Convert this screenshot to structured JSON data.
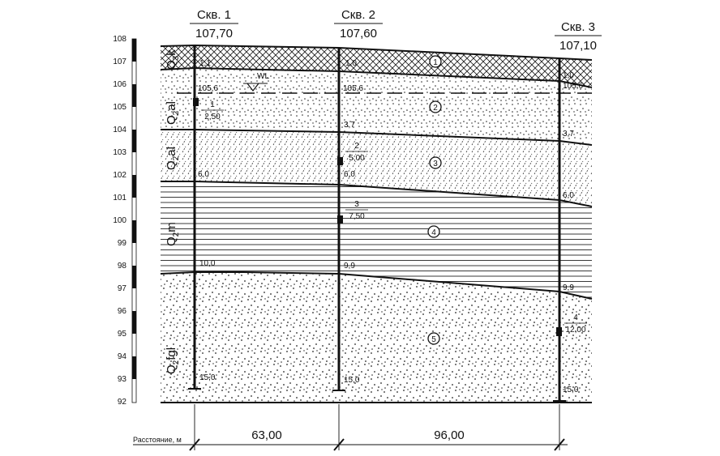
{
  "boreholes": [
    {
      "name": "Скв. 1",
      "elevation": "107,70",
      "depths": [
        "1,1",
        "105,6",
        "6,0",
        "10,0",
        "15,0"
      ]
    },
    {
      "name": "Скв. 2",
      "elevation": "107,60",
      "depths": [
        "1,0",
        "105,6",
        "3,7",
        "6,0",
        "9,9",
        "15,0"
      ]
    },
    {
      "name": "Скв. 3",
      "elevation": "107,10",
      "depths": [
        "1,0",
        "105,6",
        "3,7",
        "6,0",
        "9,9",
        "15,0"
      ]
    }
  ],
  "samples": [
    {
      "num": "1",
      "depth": "2,50"
    },
    {
      "num": "2",
      "depth": "5,00"
    },
    {
      "num": "3",
      "depth": "7,50"
    },
    {
      "num": "4",
      "depth": "12,00"
    }
  ],
  "layers": [
    "1",
    "2",
    "3",
    "4",
    "5"
  ],
  "geo_indices": [
    {
      "base": "Q",
      "sub": "3",
      "suffix": "k"
    },
    {
      "base": "Q",
      "sub": "2",
      "suffix": "al"
    },
    {
      "base": "Q",
      "sub": "2",
      "suffix": "al"
    },
    {
      "base": "Q",
      "sub": "2",
      "suffix": "m"
    },
    {
      "base": "Q",
      "sub": "2",
      "suffix": "fgl"
    }
  ],
  "elevation_scale": [
    "108",
    "107",
    "106",
    "105",
    "104",
    "103",
    "102",
    "101",
    "100",
    "99",
    "98",
    "97",
    "96",
    "95",
    "94",
    "93",
    "92"
  ],
  "water_level_label": "WL",
  "distance_label": "Расстояние, м",
  "distances": [
    "63,00",
    "96,00"
  ]
}
